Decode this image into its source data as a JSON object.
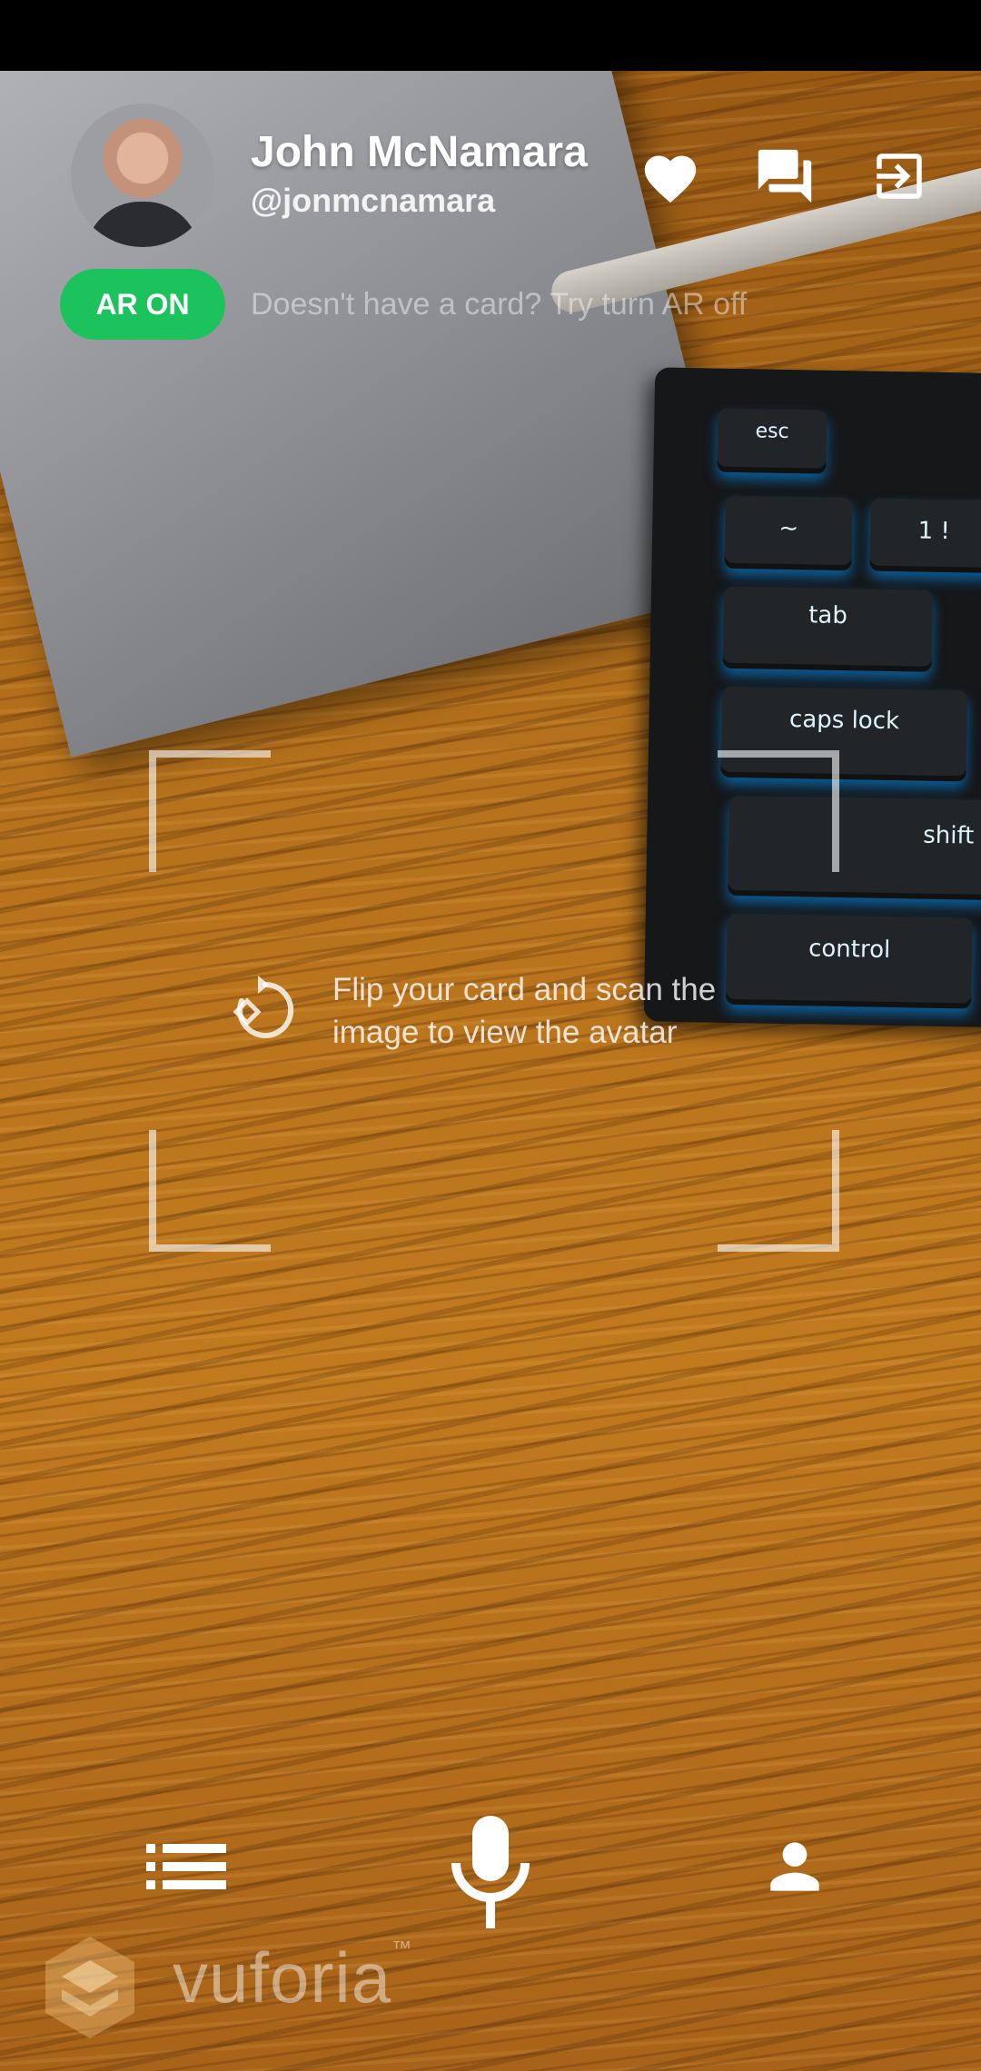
{
  "profile": {
    "name": "John McNamara",
    "handle": "@jonmcnamara",
    "avatar_icon": "user-photo-avatar"
  },
  "header_actions": [
    {
      "icon": "heart-icon"
    },
    {
      "icon": "chat-icon"
    },
    {
      "icon": "exit-icon"
    }
  ],
  "ar": {
    "toggle_label": "AR ON",
    "toggle_color": "#1cc35c",
    "hint": "Doesn't have a card? Try turn AR off"
  },
  "scan": {
    "icon": "flip-rotate-icon",
    "instruction_line1": "Flip your card and scan the",
    "instruction_line2": "image to view the avatar"
  },
  "bottom_nav": [
    {
      "icon": "list-icon"
    },
    {
      "icon": "microphone-icon"
    },
    {
      "icon": "person-icon"
    }
  ],
  "watermark": {
    "brand": "vuforia",
    "trademark": "™"
  },
  "camera_scene": {
    "keys": [
      "esc",
      "~",
      "1 !",
      "tab",
      "caps lock",
      "shift",
      "control"
    ]
  }
}
